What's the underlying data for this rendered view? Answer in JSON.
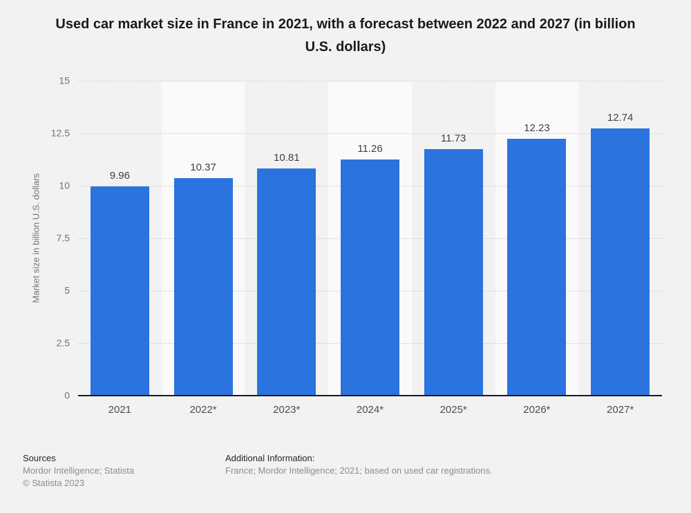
{
  "title": "Used car market size in France in 2021, with a forecast between 2022 and 2027 (in billion U.S. dollars)",
  "chart_data": {
    "type": "bar",
    "title": "Used car market size in France in 2021, with a forecast between 2022 and 2027 (in billion U.S. dollars)",
    "categories": [
      "2021",
      "2022*",
      "2023*",
      "2024*",
      "2025*",
      "2026*",
      "2027*"
    ],
    "values": [
      9.96,
      10.37,
      10.81,
      11.26,
      11.73,
      12.23,
      12.74
    ],
    "value_labels": [
      "9.96",
      "10.37",
      "10.81",
      "11.26",
      "11.73",
      "12.23",
      "12.74"
    ],
    "xlabel": "",
    "ylabel": "Market size in billion U.S. dollars",
    "ylim": [
      0,
      15
    ],
    "yticks": [
      0,
      2.5,
      5,
      7.5,
      10,
      12.5,
      15
    ],
    "ytick_labels": [
      "0",
      "2.5",
      "5",
      "7.5",
      "10",
      "12.5",
      "15"
    ],
    "grid": true,
    "legend": false,
    "bar_color": "#2b73de",
    "stripe_color": "#fafafa",
    "background_color": "#f2f2f2"
  },
  "footer": {
    "sources_label": "Sources",
    "sources_text": "Mordor Intelligence; Statista",
    "copyright": "© Statista 2023",
    "additional_label": "Additional Information:",
    "additional_text": "France; Mordor Intelligence; 2021; based on used car registrations."
  }
}
